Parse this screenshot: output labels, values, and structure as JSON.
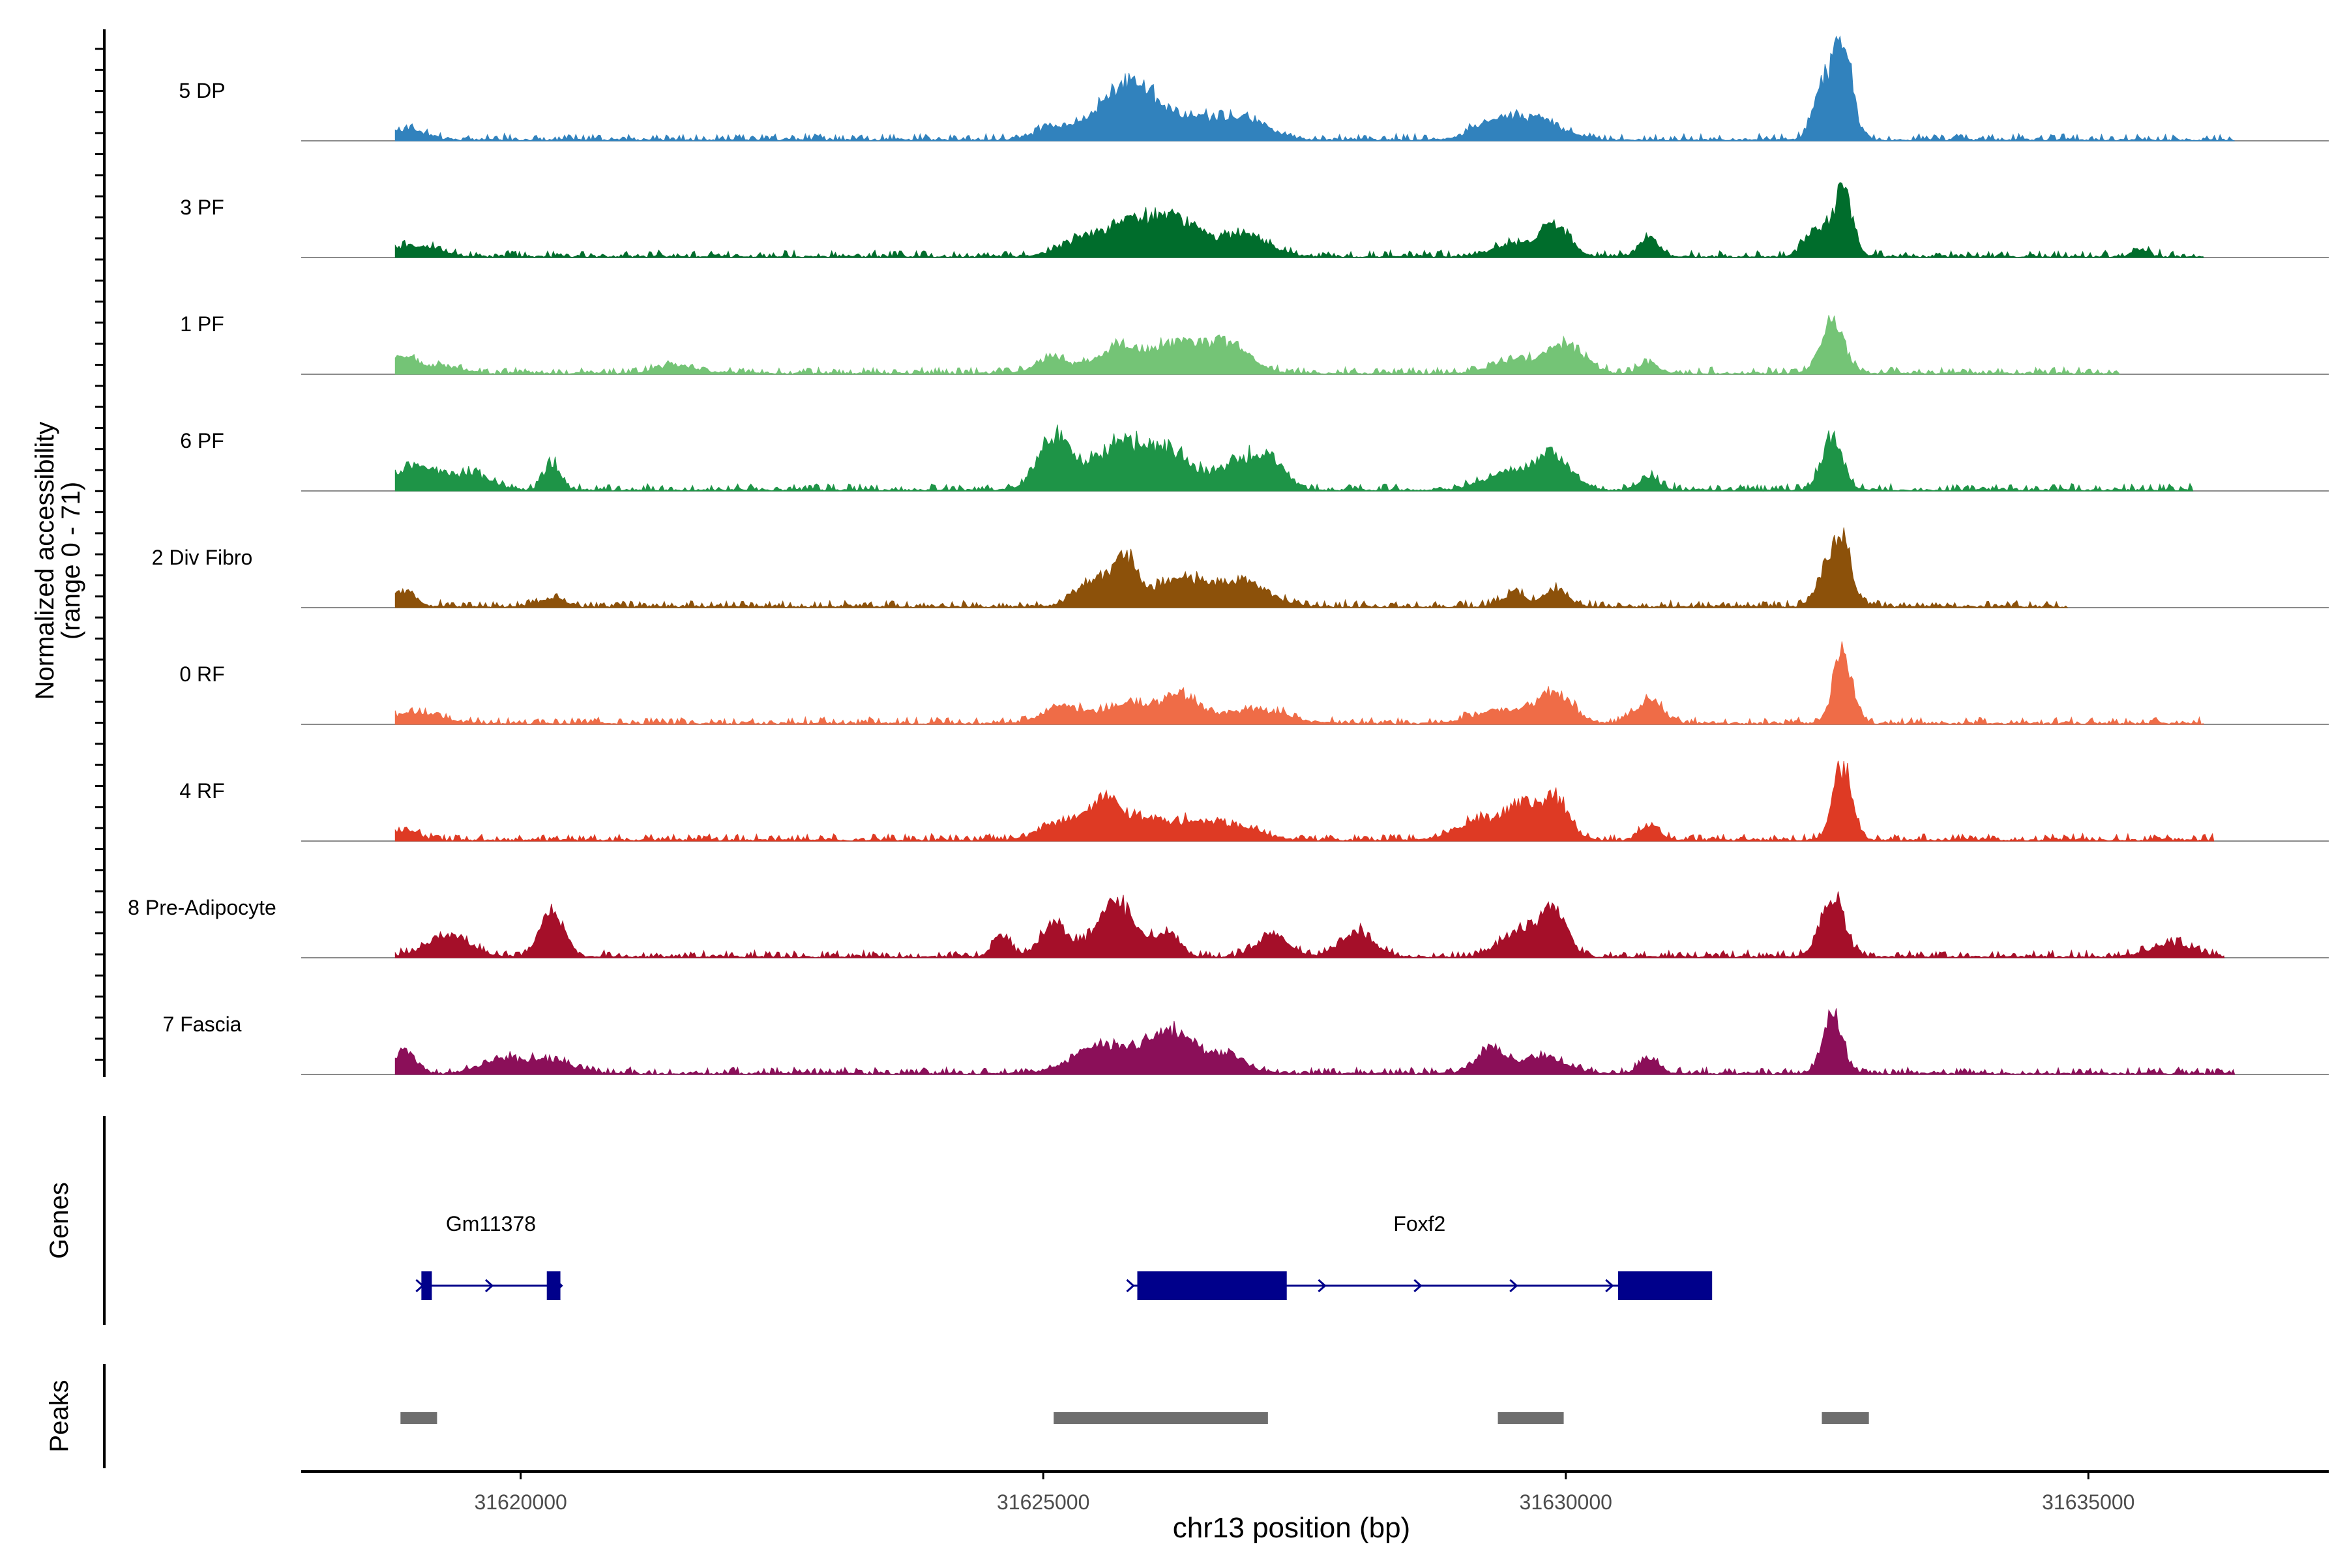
{
  "chart_data": {
    "type": "area",
    "title": "",
    "xlabel": "chr13 position (bp)",
    "ylabel": "Normalized accessibility",
    "ylabel_range": "(range 0 - 71)",
    "xlim": [
      31617900,
      31637300
    ],
    "ylim": [
      0,
      71
    ],
    "x_ticks": [
      31620000,
      31625000,
      31630000,
      31635000
    ],
    "x_tick_labels": [
      "31620000",
      "31625000",
      "31630000",
      "31635000"
    ],
    "panel_labels": {
      "genes": "Genes",
      "peaks": "Peaks"
    },
    "tracks": [
      {
        "name": "5 DP",
        "color": "#3182BD",
        "start": 31618800,
        "end": 31636400,
        "peaks": [
          [
            31618900,
            8,
            180
          ],
          [
            31625150,
            10,
            200
          ],
          [
            31625600,
            24,
            150
          ],
          [
            31625900,
            36,
            160
          ],
          [
            31626300,
            18,
            250
          ],
          [
            31626900,
            16,
            240
          ],
          [
            31629300,
            11,
            200
          ],
          [
            31629700,
            14,
            260
          ],
          [
            31632450,
            40,
            85
          ],
          [
            31632650,
            70,
            90
          ]
        ]
      },
      {
        "name": "3 PF",
        "color": "#006D2C",
        "start": 31618800,
        "end": 31636100,
        "peaks": [
          [
            31619000,
            8,
            200
          ],
          [
            31625500,
            16,
            260
          ],
          [
            31625900,
            20,
            180
          ],
          [
            31626300,
            26,
            200
          ],
          [
            31626900,
            16,
            240
          ],
          [
            31629500,
            9,
            200
          ],
          [
            31629900,
            22,
            140
          ],
          [
            31630800,
            14,
            90
          ],
          [
            31632400,
            20,
            110
          ],
          [
            31632650,
            46,
            90
          ],
          [
            31635500,
            5,
            80
          ]
        ]
      },
      {
        "name": "1 PF",
        "color": "#74C476",
        "start": 31618800,
        "end": 31635300,
        "peaks": [
          [
            31618850,
            12,
            110
          ],
          [
            31619200,
            6,
            200
          ],
          [
            31621500,
            5,
            200
          ],
          [
            31625100,
            12,
            150
          ],
          [
            31625700,
            16,
            200
          ],
          [
            31626300,
            22,
            300
          ],
          [
            31626800,
            16,
            200
          ],
          [
            31629500,
            10,
            200
          ],
          [
            31630000,
            20,
            180
          ],
          [
            31630800,
            8,
            90
          ],
          [
            31632550,
            38,
            110
          ]
        ]
      },
      {
        "name": "6 PF",
        "color": "#1E9447",
        "start": 31618800,
        "end": 31636000,
        "peaks": [
          [
            31619000,
            18,
            180
          ],
          [
            31619500,
            12,
            200
          ],
          [
            31620300,
            18,
            80
          ],
          [
            31625100,
            38,
            150
          ],
          [
            31625700,
            30,
            250
          ],
          [
            31626200,
            26,
            250
          ],
          [
            31626900,
            22,
            180
          ],
          [
            31627200,
            18,
            130
          ],
          [
            31629500,
            14,
            250
          ],
          [
            31629900,
            22,
            160
          ],
          [
            31630800,
            10,
            90
          ],
          [
            31632550,
            40,
            100
          ]
        ]
      },
      {
        "name": "2 Div Fibro",
        "color": "#8C510A",
        "start": 31618800,
        "end": 31634800,
        "peaks": [
          [
            31618900,
            12,
            100
          ],
          [
            31620300,
            6,
            120
          ],
          [
            31625500,
            20,
            180
          ],
          [
            31625800,
            30,
            110
          ],
          [
            31626300,
            20,
            250
          ],
          [
            31626900,
            18,
            250
          ],
          [
            31629500,
            10,
            100
          ],
          [
            31629900,
            12,
            120
          ],
          [
            31632500,
            26,
            100
          ],
          [
            31632650,
            42,
            90
          ]
        ]
      },
      {
        "name": "0 RF",
        "color": "#EF6C47",
        "start": 31618800,
        "end": 31636100,
        "peaks": [
          [
            31619000,
            8,
            200
          ],
          [
            31625200,
            12,
            200
          ],
          [
            31625800,
            14,
            200
          ],
          [
            31626300,
            20,
            180
          ],
          [
            31627000,
            10,
            300
          ],
          [
            31629400,
            10,
            250
          ],
          [
            31629900,
            22,
            160
          ],
          [
            31630800,
            16,
            130
          ],
          [
            31632650,
            52,
            90
          ]
        ]
      },
      {
        "name": "4 RF",
        "color": "#DE3A24",
        "start": 31618800,
        "end": 31636200,
        "peaks": [
          [
            31618900,
            7,
            120
          ],
          [
            31625200,
            14,
            200
          ],
          [
            31625600,
            24,
            150
          ],
          [
            31626000,
            14,
            300
          ],
          [
            31626700,
            12,
            300
          ],
          [
            31629200,
            14,
            250
          ],
          [
            31629600,
            22,
            150
          ],
          [
            31629900,
            28,
            130
          ],
          [
            31630800,
            12,
            90
          ],
          [
            31632650,
            54,
            90
          ]
        ]
      },
      {
        "name": "8 Pre-Adipocyte",
        "color": "#A50F29",
        "start": 31618800,
        "end": 31636300,
        "peaks": [
          [
            31619300,
            16,
            200
          ],
          [
            31620300,
            34,
            110
          ],
          [
            31624600,
            16,
            80
          ],
          [
            31625100,
            24,
            120
          ],
          [
            31625700,
            38,
            200
          ],
          [
            31626200,
            18,
            100
          ],
          [
            31627200,
            16,
            150
          ],
          [
            31628000,
            18,
            160
          ],
          [
            31629600,
            20,
            200
          ],
          [
            31629900,
            30,
            120
          ],
          [
            31632550,
            46,
            110
          ],
          [
            31635800,
            10,
            200
          ]
        ]
      },
      {
        "name": "7 Fascia",
        "color": "#8B0F59",
        "start": 31618800,
        "end": 31636400,
        "peaks": [
          [
            31618900,
            16,
            100
          ],
          [
            31619800,
            10,
            200
          ],
          [
            31620300,
            10,
            200
          ],
          [
            31625600,
            20,
            300
          ],
          [
            31626200,
            28,
            200
          ],
          [
            31626700,
            14,
            200
          ],
          [
            31629300,
            18,
            150
          ],
          [
            31629800,
            12,
            200
          ],
          [
            31630800,
            12,
            90
          ],
          [
            31632550,
            46,
            90
          ]
        ]
      }
    ],
    "genes": [
      {
        "name": "Gm11378",
        "start": 31619050,
        "end": 31620380,
        "strand": "+",
        "exons": [
          [
            31619050,
            31619150
          ],
          [
            31620250,
            31620380
          ]
        ]
      },
      {
        "name": "Foxf2",
        "start": 31625850,
        "end": 31631350,
        "strand": "+",
        "exons": [
          [
            31625900,
            31627330
          ],
          [
            31630500,
            31631400
          ]
        ]
      }
    ],
    "peaks": [
      [
        31618850,
        31619200
      ],
      [
        31625100,
        31627150
      ],
      [
        31629350,
        31629980
      ],
      [
        31632450,
        31632900
      ]
    ]
  }
}
